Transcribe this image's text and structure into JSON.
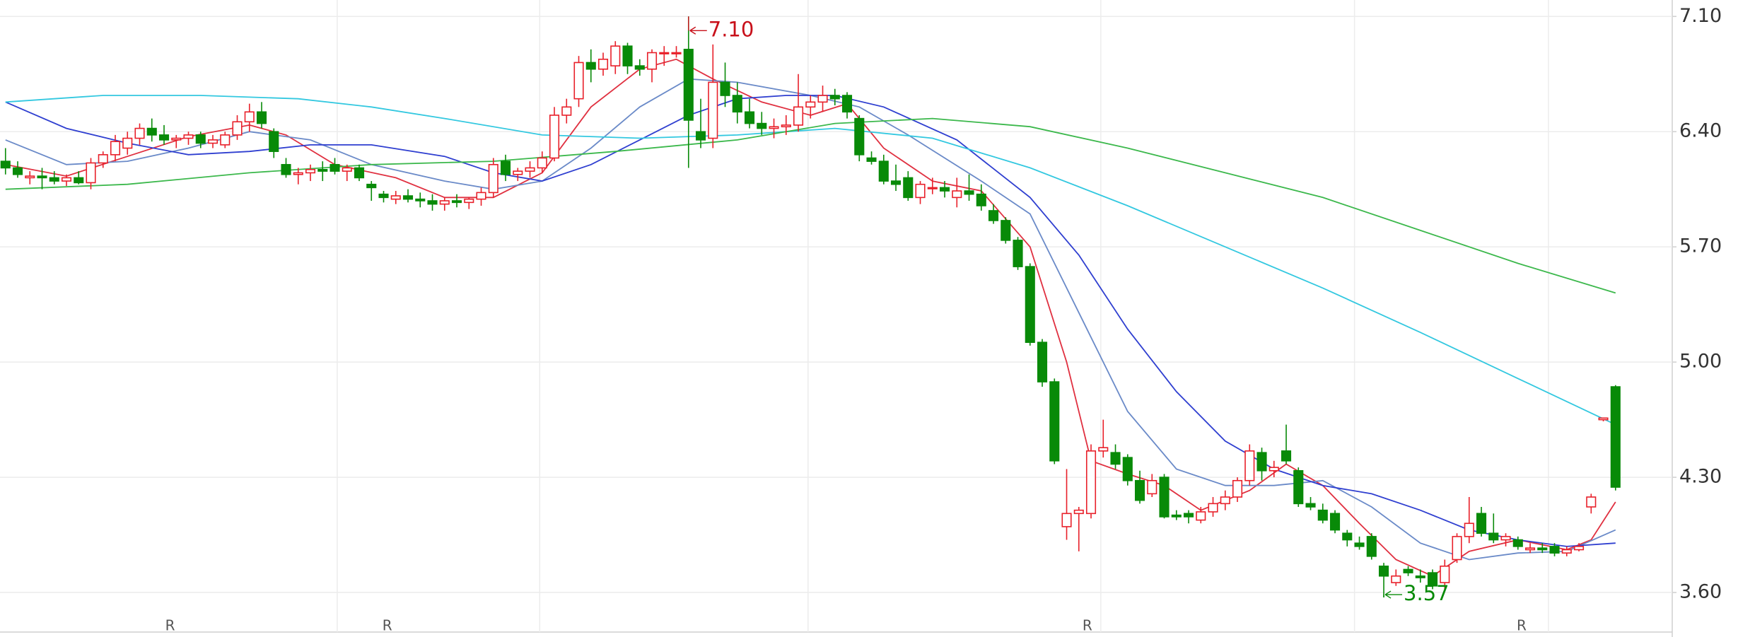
{
  "chart_data": {
    "type": "candlestick",
    "up_color": "#e8202a",
    "down_color": "#088a08",
    "xlim": [
      -0.45,
      136.65
    ],
    "ylim": [
      3.51,
      7.2
    ],
    "yticks": [
      {
        "value": 3.6,
        "label": "3.60"
      },
      {
        "value": 4.3,
        "label": "4.30"
      },
      {
        "value": 5.0,
        "label": "5.00"
      },
      {
        "value": 5.7,
        "label": "5.70"
      },
      {
        "value": 6.4,
        "label": "6.40"
      },
      {
        "value": 7.1,
        "label": "7.10"
      }
    ],
    "xgrid": [
      27.2,
      43.8,
      65.8,
      89.8,
      110.6,
      126.5
    ],
    "grid": true,
    "candles": [
      [
        6.22,
        6.3,
        6.14,
        6.18
      ],
      [
        6.18,
        6.22,
        6.12,
        6.14
      ],
      [
        6.12,
        6.16,
        6.08,
        6.13
      ],
      [
        6.13,
        6.18,
        6.05,
        6.12
      ],
      [
        6.12,
        6.16,
        6.08,
        6.1
      ],
      [
        6.1,
        6.14,
        6.07,
        6.12
      ],
      [
        6.12,
        6.16,
        6.08,
        6.09
      ],
      [
        6.09,
        6.24,
        6.05,
        6.21
      ],
      [
        6.21,
        6.28,
        6.18,
        6.26
      ],
      [
        6.26,
        6.38,
        6.22,
        6.34
      ],
      [
        6.3,
        6.4,
        6.26,
        6.36
      ],
      [
        6.36,
        6.45,
        6.32,
        6.42
      ],
      [
        6.42,
        6.48,
        6.34,
        6.38
      ],
      [
        6.38,
        6.44,
        6.32,
        6.35
      ],
      [
        6.35,
        6.38,
        6.3,
        6.36
      ],
      [
        6.36,
        6.4,
        6.32,
        6.38
      ],
      [
        6.38,
        6.4,
        6.3,
        6.33
      ],
      [
        6.33,
        6.38,
        6.3,
        6.35
      ],
      [
        6.32,
        6.4,
        6.3,
        6.38
      ],
      [
        6.38,
        6.5,
        6.35,
        6.46
      ],
      [
        6.46,
        6.57,
        6.4,
        6.52
      ],
      [
        6.52,
        6.58,
        6.42,
        6.45
      ],
      [
        6.4,
        6.42,
        6.24,
        6.28
      ],
      [
        6.2,
        6.24,
        6.12,
        6.14
      ],
      [
        6.14,
        6.18,
        6.08,
        6.15
      ],
      [
        6.15,
        6.2,
        6.1,
        6.17
      ],
      [
        6.17,
        6.22,
        6.1,
        6.16
      ],
      [
        6.2,
        6.24,
        6.14,
        6.16
      ],
      [
        6.16,
        6.2,
        6.1,
        6.18
      ],
      [
        6.18,
        6.2,
        6.1,
        6.12
      ],
      [
        6.08,
        6.1,
        5.98,
        6.06
      ],
      [
        6.02,
        6.04,
        5.97,
        6.0
      ],
      [
        5.99,
        6.04,
        5.96,
        6.01
      ],
      [
        6.01,
        6.05,
        5.97,
        5.99
      ],
      [
        5.99,
        6.03,
        5.94,
        5.98
      ],
      [
        5.98,
        6.02,
        5.92,
        5.96
      ],
      [
        5.96,
        6.0,
        5.92,
        5.98
      ],
      [
        5.98,
        6.02,
        5.94,
        5.97
      ],
      [
        5.97,
        6.0,
        5.93,
        5.99
      ],
      [
        5.99,
        6.06,
        5.95,
        6.03
      ],
      [
        6.03,
        6.24,
        6.0,
        6.2
      ],
      [
        6.22,
        6.26,
        6.1,
        6.14
      ],
      [
        6.14,
        6.18,
        6.1,
        6.16
      ],
      [
        6.16,
        6.22,
        6.12,
        6.18
      ],
      [
        6.18,
        6.28,
        6.15,
        6.24
      ],
      [
        6.24,
        6.55,
        6.22,
        6.5
      ],
      [
        6.5,
        6.6,
        6.45,
        6.55
      ],
      [
        6.6,
        6.86,
        6.55,
        6.82
      ],
      [
        6.82,
        6.9,
        6.7,
        6.78
      ],
      [
        6.78,
        6.88,
        6.74,
        6.84
      ],
      [
        6.8,
        6.95,
        6.75,
        6.92
      ],
      [
        6.92,
        6.94,
        6.75,
        6.8
      ],
      [
        6.8,
        6.84,
        6.74,
        6.78
      ],
      [
        6.78,
        6.9,
        6.7,
        6.88
      ],
      [
        6.88,
        6.92,
        6.8,
        6.88
      ],
      [
        6.88,
        6.92,
        6.85,
        6.88
      ],
      [
        6.9,
        7.1,
        6.18,
        6.47
      ],
      [
        6.4,
        6.6,
        6.3,
        6.35
      ],
      [
        6.36,
        6.93,
        6.3,
        6.7
      ],
      [
        6.7,
        6.82,
        6.55,
        6.62
      ],
      [
        6.62,
        6.7,
        6.45,
        6.52
      ],
      [
        6.52,
        6.6,
        6.42,
        6.45
      ],
      [
        6.45,
        6.52,
        6.38,
        6.42
      ],
      [
        6.42,
        6.48,
        6.36,
        6.43
      ],
      [
        6.43,
        6.5,
        6.38,
        6.44
      ],
      [
        6.44,
        6.75,
        6.4,
        6.55
      ],
      [
        6.55,
        6.62,
        6.48,
        6.58
      ],
      [
        6.58,
        6.68,
        6.52,
        6.62
      ],
      [
        6.62,
        6.66,
        6.56,
        6.6
      ],
      [
        6.62,
        6.64,
        6.48,
        6.52
      ],
      [
        6.48,
        6.5,
        6.22,
        6.26
      ],
      [
        6.24,
        6.28,
        6.2,
        6.22
      ],
      [
        6.22,
        6.26,
        6.08,
        6.1
      ],
      [
        6.1,
        6.2,
        6.04,
        6.08
      ],
      [
        6.12,
        6.16,
        5.98,
        6.0
      ],
      [
        6.0,
        6.1,
        5.96,
        6.08
      ],
      [
        6.06,
        6.12,
        6.02,
        6.06
      ],
      [
        6.06,
        6.1,
        6.0,
        6.04
      ],
      [
        6.0,
        6.12,
        5.94,
        6.04
      ],
      [
        6.04,
        6.14,
        5.98,
        6.02
      ],
      [
        6.02,
        6.08,
        5.92,
        5.95
      ],
      [
        5.92,
        5.96,
        5.84,
        5.86
      ],
      [
        5.86,
        5.88,
        5.72,
        5.74
      ],
      [
        5.74,
        5.76,
        5.56,
        5.58
      ],
      [
        5.58,
        5.6,
        5.1,
        5.12
      ],
      [
        5.12,
        5.14,
        4.85,
        4.88
      ],
      [
        4.88,
        4.9,
        4.38,
        4.4
      ],
      [
        4.0,
        4.35,
        3.92,
        4.08
      ],
      [
        4.08,
        4.12,
        3.85,
        4.1
      ],
      [
        4.08,
        4.5,
        4.05,
        4.46
      ],
      [
        4.46,
        4.65,
        4.42,
        4.48
      ],
      [
        4.45,
        4.5,
        4.35,
        4.38
      ],
      [
        4.42,
        4.44,
        4.25,
        4.28
      ],
      [
        4.28,
        4.34,
        4.14,
        4.16
      ],
      [
        4.2,
        4.32,
        4.18,
        4.28
      ],
      [
        4.3,
        4.32,
        4.05,
        4.06
      ],
      [
        4.07,
        4.1,
        4.04,
        4.06
      ],
      [
        4.08,
        4.1,
        4.02,
        4.06
      ],
      [
        4.04,
        4.12,
        4.02,
        4.09
      ],
      [
        4.09,
        4.18,
        4.06,
        4.14
      ],
      [
        4.14,
        4.22,
        4.1,
        4.18
      ],
      [
        4.18,
        4.3,
        4.15,
        4.28
      ],
      [
        4.28,
        4.5,
        4.25,
        4.46
      ],
      [
        4.45,
        4.48,
        4.28,
        4.34
      ],
      [
        4.34,
        4.4,
        4.3,
        4.36
      ],
      [
        4.46,
        4.62,
        4.38,
        4.4
      ],
      [
        4.34,
        4.36,
        4.12,
        4.14
      ],
      [
        4.14,
        4.18,
        4.1,
        4.12
      ],
      [
        4.1,
        4.14,
        4.02,
        4.04
      ],
      [
        4.08,
        4.1,
        3.96,
        3.98
      ],
      [
        3.96,
        3.98,
        3.88,
        3.92
      ],
      [
        3.9,
        3.94,
        3.86,
        3.88
      ],
      [
        3.94,
        3.96,
        3.8,
        3.82
      ],
      [
        3.76,
        3.78,
        3.57,
        3.7
      ],
      [
        3.66,
        3.74,
        3.64,
        3.7
      ],
      [
        3.74,
        3.76,
        3.7,
        3.72
      ],
      [
        3.7,
        3.74,
        3.66,
        3.69
      ],
      [
        3.72,
        3.74,
        3.62,
        3.64
      ],
      [
        3.66,
        3.8,
        3.62,
        3.76
      ],
      [
        3.8,
        3.96,
        3.78,
        3.94
      ],
      [
        3.94,
        4.18,
        3.9,
        4.02
      ],
      [
        4.08,
        4.12,
        3.94,
        3.96
      ],
      [
        3.96,
        4.08,
        3.9,
        3.92
      ],
      [
        3.92,
        3.96,
        3.88,
        3.94
      ],
      [
        3.92,
        3.94,
        3.86,
        3.88
      ],
      [
        3.86,
        3.9,
        3.84,
        3.87
      ],
      [
        3.87,
        3.9,
        3.84,
        3.86
      ],
      [
        3.88,
        3.9,
        3.82,
        3.84
      ],
      [
        3.84,
        3.88,
        3.82,
        3.86
      ],
      [
        3.86,
        3.9,
        3.85,
        3.88
      ],
      [
        4.12,
        4.2,
        4.08,
        4.18
      ],
      [
        4.65,
        4.66,
        4.64,
        4.66
      ],
      [
        4.85,
        4.86,
        4.22,
        4.24
      ]
    ],
    "lines": [
      {
        "color": "#e03040",
        "x": [
          0,
          5,
          10,
          15,
          20,
          23,
          27,
          32,
          36,
          40,
          44,
          48,
          52,
          55,
          58,
          62,
          66,
          69,
          72,
          76,
          80,
          84,
          87,
          89,
          92,
          95,
          98,
          102,
          105,
          108,
          111,
          114,
          117,
          120,
          124,
          128,
          130,
          132
        ],
        "values": [
          6.2,
          6.13,
          6.25,
          6.37,
          6.44,
          6.38,
          6.2,
          6.12,
          6.0,
          6.0,
          6.15,
          6.55,
          6.78,
          6.84,
          6.72,
          6.58,
          6.5,
          6.57,
          6.3,
          6.1,
          6.04,
          5.7,
          5.0,
          4.4,
          4.32,
          4.25,
          4.1,
          4.22,
          4.38,
          4.25,
          4.02,
          3.8,
          3.7,
          3.85,
          3.92,
          3.86,
          3.92,
          4.15
        ]
      },
      {
        "color": "#6a8ac8",
        "x": [
          0,
          5,
          10,
          15,
          20,
          25,
          30,
          36,
          40,
          44,
          48,
          52,
          56,
          60,
          66,
          70,
          74,
          80,
          84,
          88,
          92,
          96,
          100,
          104,
          108,
          112,
          116,
          120,
          124,
          128,
          132
        ],
        "values": [
          6.35,
          6.2,
          6.22,
          6.3,
          6.4,
          6.35,
          6.2,
          6.1,
          6.05,
          6.1,
          6.3,
          6.55,
          6.72,
          6.7,
          6.62,
          6.55,
          6.38,
          6.1,
          5.9,
          5.3,
          4.7,
          4.35,
          4.25,
          4.25,
          4.28,
          4.12,
          3.9,
          3.8,
          3.84,
          3.85,
          3.98
        ]
      },
      {
        "color": "#2f3fd0",
        "x": [
          0,
          5,
          10,
          15,
          20,
          25,
          30,
          36,
          40,
          44,
          48,
          52,
          56,
          60,
          64,
          68,
          72,
          78,
          84,
          88,
          92,
          96,
          100,
          104,
          108,
          112,
          116,
          120,
          124,
          128,
          132
        ],
        "values": [
          6.58,
          6.42,
          6.33,
          6.26,
          6.28,
          6.32,
          6.32,
          6.25,
          6.15,
          6.1,
          6.2,
          6.35,
          6.5,
          6.6,
          6.62,
          6.62,
          6.55,
          6.35,
          6.0,
          5.65,
          5.2,
          4.82,
          4.52,
          4.35,
          4.25,
          4.2,
          4.1,
          3.98,
          3.92,
          3.88,
          3.9
        ]
      },
      {
        "color": "#33c8e0",
        "x": [
          0,
          8,
          16,
          24,
          30,
          36,
          44,
          52,
          60,
          68,
          76,
          84,
          92,
          100,
          108,
          116,
          124,
          132
        ],
        "values": [
          6.58,
          6.62,
          6.62,
          6.6,
          6.55,
          6.48,
          6.38,
          6.36,
          6.38,
          6.42,
          6.36,
          6.18,
          5.95,
          5.7,
          5.45,
          5.18,
          4.9,
          4.62
        ]
      },
      {
        "color": "#3cb84c",
        "x": [
          0,
          10,
          20,
          30,
          40,
          50,
          60,
          68,
          76,
          84,
          92,
          100,
          108,
          116,
          124,
          132
        ],
        "values": [
          6.05,
          6.08,
          6.15,
          6.2,
          6.22,
          6.28,
          6.35,
          6.45,
          6.48,
          6.43,
          6.3,
          6.15,
          6.0,
          5.8,
          5.6,
          5.42
        ]
      }
    ],
    "annotations": [
      {
        "label": "7.10",
        "value": 7.1,
        "x": 56,
        "color": "#c8101a"
      },
      {
        "label": "3.57",
        "value": 3.57,
        "x": 113,
        "color": "#088a08"
      }
    ],
    "markers": [
      {
        "label": "R",
        "x": 13.5
      },
      {
        "label": "R",
        "x": 31.3
      },
      {
        "label": "R",
        "x": 88.7
      },
      {
        "label": "R",
        "x": 124.3
      }
    ]
  }
}
